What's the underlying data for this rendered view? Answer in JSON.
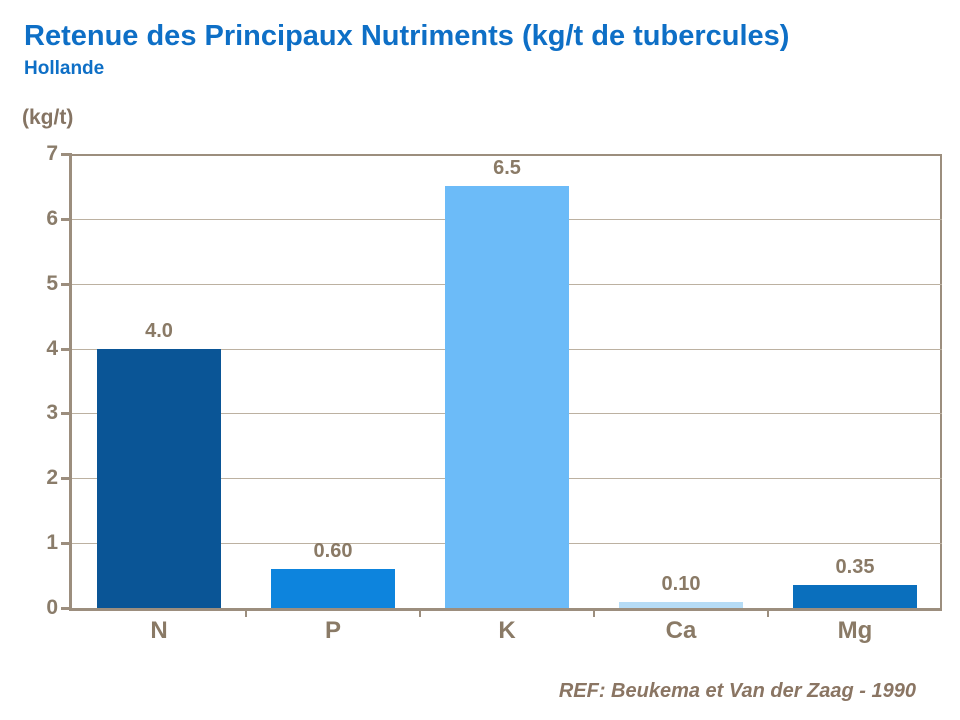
{
  "header": {
    "title": "Retenue des Principaux Nutriments (kg/t de tubercules)",
    "subtitle": "Hollande"
  },
  "footer": {
    "reference": "REF: Beukema et Van der Zaag - 1990"
  },
  "colors": {
    "title_blue": "#0e6fc6",
    "text_brown": "#8a7a66",
    "axis_line": "#9c8e7e",
    "gridline": "#bcb1a1",
    "bar_n": "#0a5596",
    "bar_p": "#0d84dd",
    "bar_k": "#6cbbf8",
    "bar_ca": "#b6dcf6",
    "bar_mg": "#0a6fbd"
  },
  "chart_data": {
    "type": "bar",
    "title": "Retenue des Principaux Nutriments (kg/t de tubercules)",
    "subtitle": "Hollande",
    "ylabel": "(kg/t)",
    "xlabel": "",
    "categories": [
      "N",
      "P",
      "K",
      "Ca",
      "Mg"
    ],
    "values": [
      4.0,
      0.6,
      6.5,
      0.1,
      0.35
    ],
    "value_labels": [
      "4.0",
      "0.60",
      "6.5",
      "0.10",
      "0.35"
    ],
    "bar_colors": [
      "#0a5596",
      "#0d84dd",
      "#6cbbf8",
      "#b6dcf6",
      "#0a6fbd"
    ],
    "ylim": [
      0,
      7
    ],
    "yticks": [
      0,
      1,
      2,
      3,
      4,
      5,
      6,
      7
    ],
    "ytick_interval": 1,
    "grid": true,
    "legend": "none",
    "annotation": "REF: Beukema et Van der Zaag - 1990"
  }
}
